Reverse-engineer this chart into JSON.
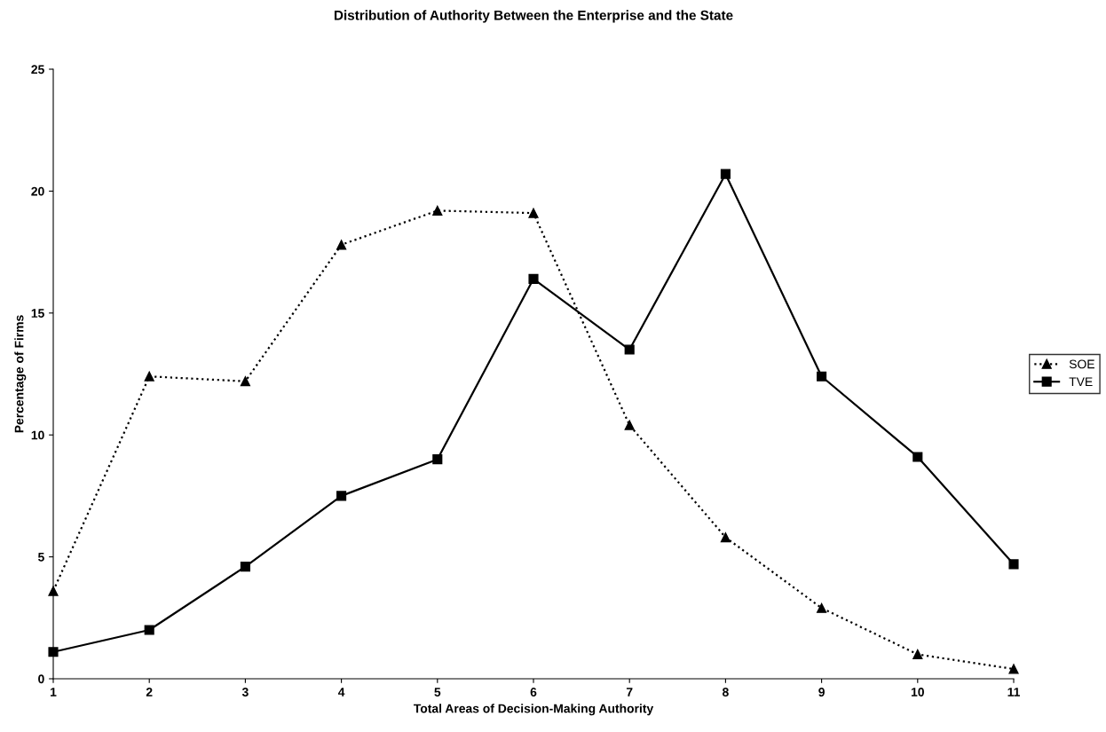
{
  "chart_data": {
    "type": "line",
    "title": "Distribution of Authority Between the Enterprise and the State",
    "xlabel": "Total Areas of Decision-Making Authority",
    "ylabel": "Percentage of Firms",
    "x": [
      1,
      2,
      3,
      4,
      5,
      6,
      7,
      8,
      9,
      10,
      11
    ],
    "series": [
      {
        "name": "SOE",
        "color": "#000000",
        "marker": "triangle",
        "line_style": "dotted",
        "values": [
          3.6,
          12.4,
          12.2,
          17.8,
          19.2,
          19.1,
          10.4,
          5.8,
          2.9,
          1.0,
          0.4
        ]
      },
      {
        "name": "TVE",
        "color": "#000000",
        "marker": "square",
        "line_style": "solid",
        "values": [
          1.1,
          2.0,
          4.6,
          7.5,
          9.0,
          16.4,
          13.5,
          20.7,
          12.4,
          9.1,
          4.7
        ]
      }
    ],
    "xlim": [
      1,
      11
    ],
    "xticks": [
      1,
      2,
      3,
      4,
      5,
      6,
      7,
      8,
      9,
      10,
      11
    ],
    "ylim": [
      0,
      25
    ],
    "yticks": [
      0,
      5,
      10,
      15,
      20,
      25
    ],
    "grid": false,
    "legend": "right"
  }
}
